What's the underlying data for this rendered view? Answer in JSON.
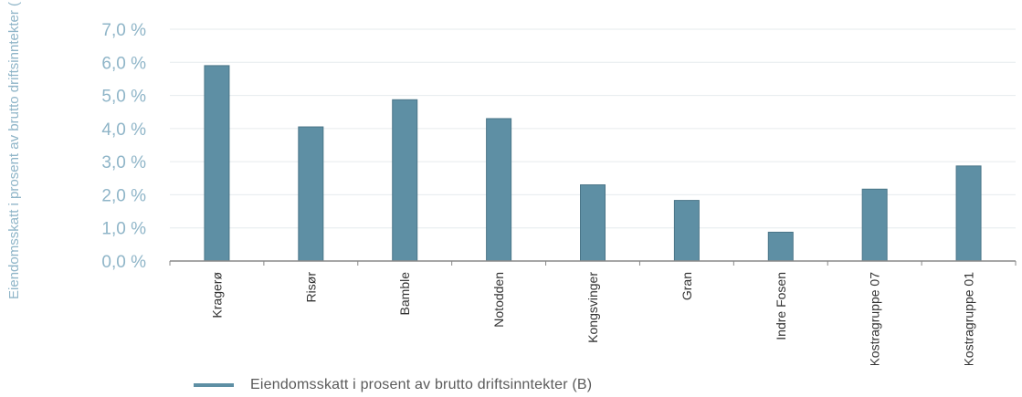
{
  "chart_data": {
    "type": "bar",
    "ylabel": "Eiendomsskatt i prosent av brutto driftsinntekter (",
    "yticks": [
      "0,0 %",
      "1,0 %",
      "2,0 %",
      "3,0 %",
      "4,0 %",
      "5,0 %",
      "6,0 %",
      "7,0 %"
    ],
    "ylim": [
      0,
      7
    ],
    "grid": true,
    "categories": [
      "Kragerø",
      "Risør",
      "Bamble",
      "Notodden",
      "Kongsvinger",
      "Gran",
      "Indre Fosen",
      "Kostragruppe 07",
      "Kostragruppe 01"
    ],
    "series": [
      {
        "name": "Eiendomsskatt i prosent av brutto driftsinntekter (B)",
        "values": [
          5.9,
          4.05,
          4.87,
          4.3,
          2.3,
          1.83,
          0.87,
          2.17,
          2.87
        ]
      }
    ],
    "legend_position": "bottom",
    "colors": {
      "bar": "#5e8fa4",
      "bar_stroke": "#4a7588",
      "tick_label": "#8fb5c8",
      "grid": "#e6ebee"
    }
  }
}
